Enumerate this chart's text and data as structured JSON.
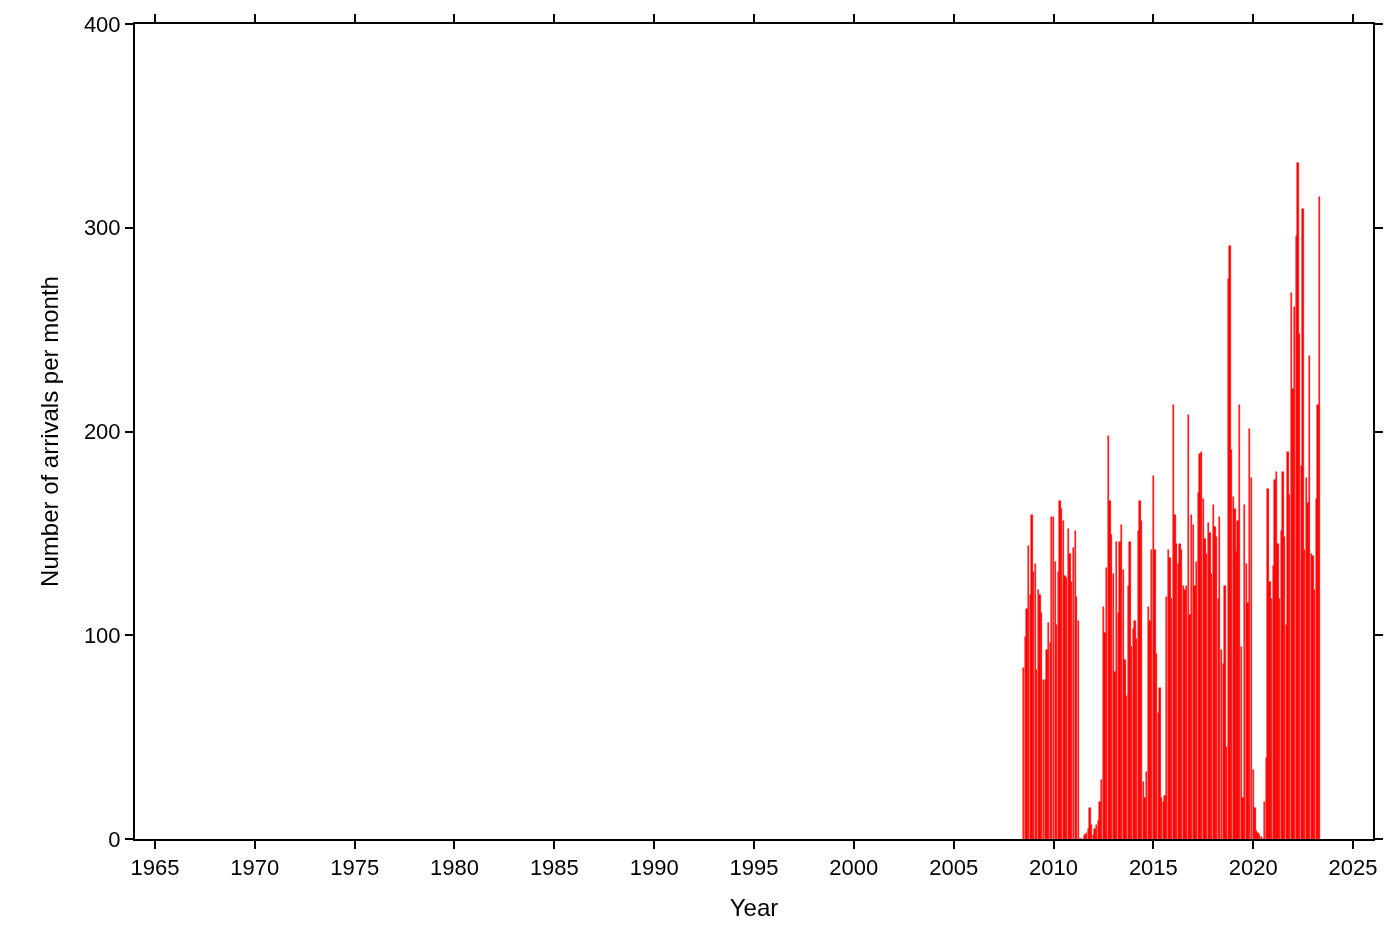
{
  "chart_data": {
    "type": "bar",
    "xlabel": "Year",
    "ylabel": "Number of arrivals per month",
    "x": [
      "2008-07",
      "2008-08",
      "2008-09",
      "2008-10",
      "2008-11",
      "2008-12",
      "2009-01",
      "2009-02",
      "2009-03",
      "2009-04",
      "2009-05",
      "2009-06",
      "2009-07",
      "2009-08",
      "2009-09",
      "2009-10",
      "2009-11",
      "2009-12",
      "2010-01",
      "2010-02",
      "2010-03",
      "2010-04",
      "2010-05",
      "2010-06",
      "2010-07",
      "2010-08",
      "2010-09",
      "2010-10",
      "2010-11",
      "2010-12",
      "2011-01",
      "2011-02",
      "2011-03",
      "2011-04",
      "2011-05",
      "2011-06",
      "2011-07",
      "2011-08",
      "2011-09",
      "2011-10",
      "2011-11",
      "2011-12",
      "2012-01",
      "2012-02",
      "2012-03",
      "2012-04",
      "2012-05",
      "2012-06",
      "2012-07",
      "2012-08",
      "2012-09",
      "2012-10",
      "2012-11",
      "2012-12",
      "2013-01",
      "2013-02",
      "2013-03",
      "2013-04",
      "2013-05",
      "2013-06",
      "2013-07",
      "2013-08",
      "2013-09",
      "2013-10",
      "2013-11",
      "2013-12",
      "2014-01",
      "2014-02",
      "2014-03",
      "2014-04",
      "2014-05",
      "2014-06",
      "2014-07",
      "2014-08",
      "2014-09",
      "2014-10",
      "2014-11",
      "2014-12",
      "2015-01",
      "2015-02",
      "2015-03",
      "2015-04",
      "2015-05",
      "2015-06",
      "2015-07",
      "2015-08",
      "2015-09",
      "2015-10",
      "2015-11",
      "2015-12",
      "2016-01",
      "2016-02",
      "2016-03",
      "2016-04",
      "2016-05",
      "2016-06",
      "2016-07",
      "2016-08",
      "2016-09",
      "2016-10",
      "2016-11",
      "2016-12",
      "2017-01",
      "2017-02",
      "2017-03",
      "2017-04",
      "2017-05",
      "2017-06",
      "2017-07",
      "2017-08",
      "2017-09",
      "2017-10",
      "2017-11",
      "2017-12",
      "2018-01",
      "2018-02",
      "2018-03",
      "2018-04",
      "2018-05",
      "2018-06",
      "2018-07",
      "2018-08",
      "2018-09",
      "2018-10",
      "2018-11",
      "2018-12",
      "2019-01",
      "2019-02",
      "2019-03",
      "2019-04",
      "2019-05",
      "2019-06",
      "2019-07",
      "2019-08",
      "2019-09",
      "2019-10",
      "2019-11",
      "2019-12",
      "2020-01",
      "2020-02",
      "2020-03",
      "2020-04",
      "2020-05",
      "2020-06",
      "2020-07",
      "2020-08",
      "2020-09",
      "2020-10",
      "2020-11",
      "2020-12",
      "2021-01",
      "2021-02",
      "2021-03",
      "2021-04",
      "2021-05",
      "2021-06",
      "2021-07",
      "2021-08",
      "2021-09",
      "2021-10",
      "2021-11",
      "2021-12",
      "2022-01",
      "2022-02",
      "2022-03",
      "2022-04",
      "2022-05",
      "2022-06",
      "2022-07",
      "2022-08",
      "2022-09",
      "2022-10",
      "2022-11",
      "2022-12",
      "2023-01",
      "2023-02",
      "2023-03",
      "2023-04",
      "2023-05"
    ],
    "values": [
      84,
      99,
      113,
      144,
      120,
      159,
      131,
      135,
      83,
      122,
      120,
      111,
      78,
      78,
      93,
      106,
      96,
      158,
      158,
      136,
      105,
      131,
      166,
      162,
      156,
      129,
      128,
      152,
      140,
      126,
      143,
      151,
      119,
      107,
      0,
      0,
      0,
      2,
      3,
      5,
      15,
      7,
      2,
      5,
      7,
      9,
      18,
      29,
      114,
      101,
      133,
      198,
      166,
      149,
      130,
      82,
      146,
      111,
      146,
      154,
      132,
      88,
      70,
      124,
      146,
      94,
      103,
      107,
      98,
      151,
      166,
      156,
      28,
      20,
      33,
      114,
      107,
      142,
      178,
      142,
      91,
      62,
      74,
      20,
      18,
      21,
      119,
      142,
      138,
      118,
      213,
      159,
      145,
      135,
      145,
      142,
      124,
      122,
      124,
      208,
      110,
      159,
      154,
      124,
      136,
      170,
      189,
      190,
      167,
      147,
      140,
      155,
      150,
      130,
      164,
      153,
      148,
      118,
      158,
      93,
      86,
      124,
      45,
      275,
      291,
      191,
      168,
      162,
      141,
      156,
      213,
      94,
      20,
      164,
      135,
      116,
      201,
      177,
      34,
      15,
      4,
      3,
      2,
      1,
      0,
      18,
      40,
      172,
      126,
      118,
      134,
      176,
      180,
      145,
      118,
      151,
      180,
      148,
      105,
      190,
      169,
      268,
      221,
      261,
      296,
      332,
      248,
      183,
      309,
      142,
      177,
      165,
      237,
      140,
      139,
      122,
      167,
      213,
      315
    ],
    "color": "#ff0000",
    "xlim": [
      "1964",
      "2026"
    ],
    "xticks": [
      "1965",
      "1970",
      "1975",
      "1980",
      "1985",
      "1990",
      "1995",
      "2000",
      "2005",
      "2010",
      "2015",
      "2020",
      "2025"
    ],
    "ylim": [
      0,
      400
    ],
    "yticks": [
      0,
      100,
      200,
      300,
      400
    ]
  }
}
